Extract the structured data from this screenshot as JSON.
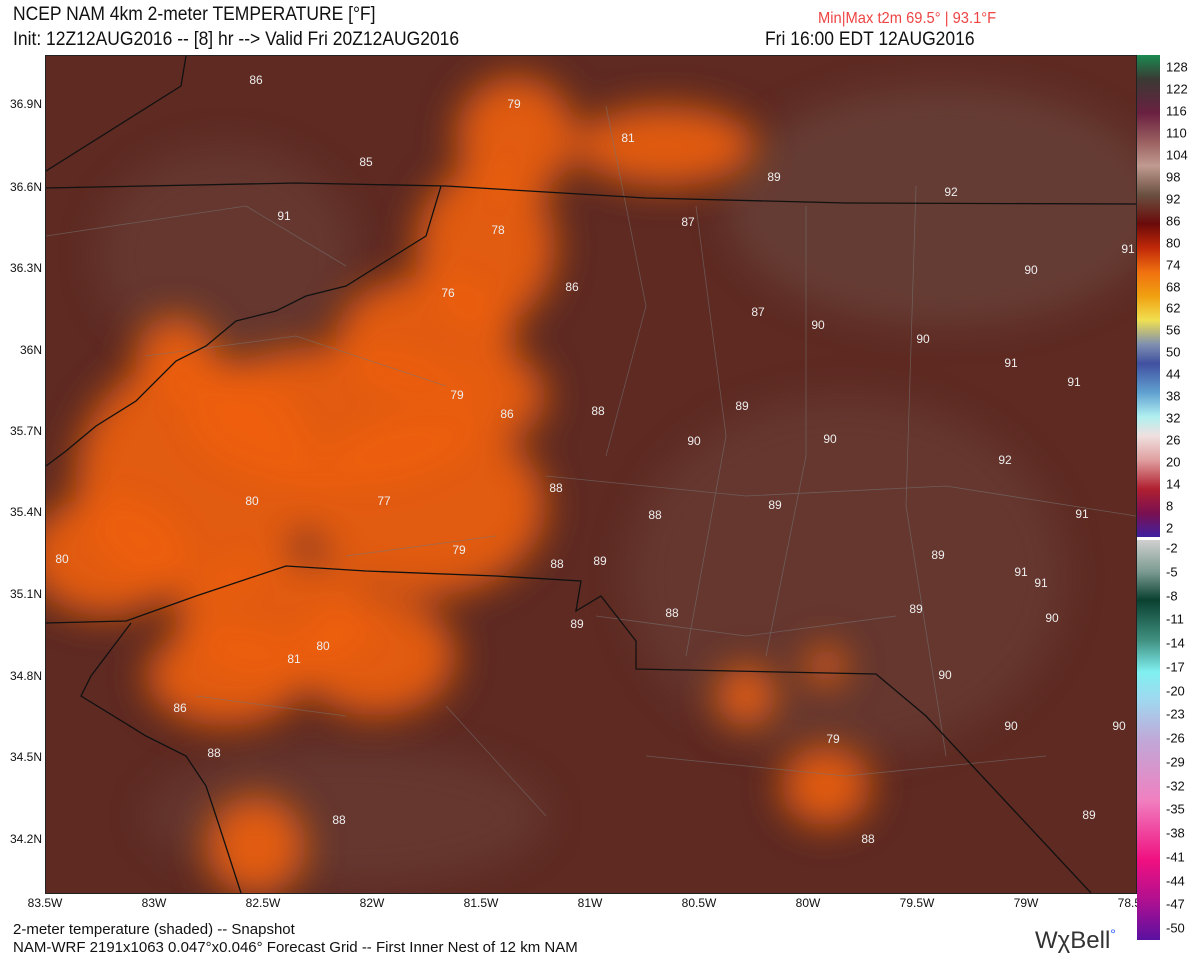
{
  "header": {
    "title": "NCEP NAM 4km 2-meter TEMPERATURE [°F]",
    "init": "Init: 12Z12AUG2016 -- [8] hr --> Valid Fri 20Z12AUG2016",
    "minmax": "Min|Max t2m 69.5° | 93.1°F",
    "local_time": "Fri 16:00 EDT 12AUG2016"
  },
  "map": {
    "lat_labels": [
      "36.9N",
      "36.6N",
      "36.3N",
      "36N",
      "35.7N",
      "35.4N",
      "35.1N",
      "34.8N",
      "34.5N",
      "34.2N"
    ],
    "lon_labels": [
      "83.5W",
      "83W",
      "82.5W",
      "82W",
      "81.5W",
      "81W",
      "80.5W",
      "80W",
      "79.5W",
      "79W",
      "78.5W"
    ],
    "background_color": "#5e2a22",
    "warm_color": "#f06010",
    "temp_labels": [
      "86",
      "79",
      "81",
      "85",
      "89",
      "92",
      "91",
      "78",
      "87",
      "90",
      "91",
      "76",
      "86",
      "87",
      "90",
      "90",
      "91",
      "91",
      "79",
      "86",
      "88",
      "89",
      "90",
      "90",
      "92",
      "88",
      "80",
      "77",
      "89",
      "88",
      "91",
      "80",
      "79",
      "88",
      "89",
      "89",
      "91",
      "91",
      "88",
      "89",
      "90",
      "89",
      "80",
      "81",
      "90",
      "86",
      "88",
      "90",
      "90",
      "79",
      "88",
      "89",
      "88"
    ]
  },
  "colorbar": {
    "labels": [
      "128",
      "122",
      "116",
      "110",
      "104",
      "98",
      "92",
      "86",
      "80",
      "74",
      "68",
      "62",
      "56",
      "50",
      "44",
      "38",
      "32",
      "26",
      "20",
      "14",
      "8",
      "2",
      "-2",
      "-5",
      "-8",
      "-11",
      "-14",
      "-17",
      "-20",
      "-23",
      "-26",
      "-29",
      "-32",
      "-35",
      "-38",
      "-41",
      "-44",
      "-47",
      "-50"
    ]
  },
  "footer": {
    "line1": "2-meter temperature (shaded) -- Snapshot",
    "line2": "NAM-WRF 2191x1063 0.047°x0.046° Forecast Grid -- First Inner Nest of 12 km NAM",
    "logo": "WχBell"
  }
}
